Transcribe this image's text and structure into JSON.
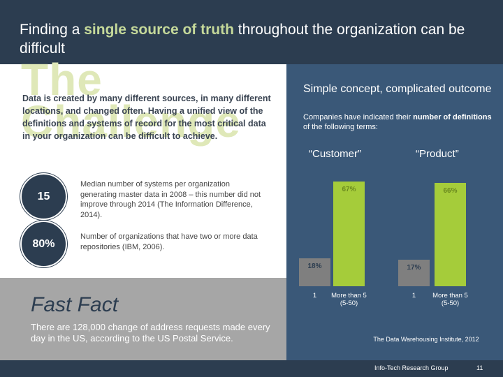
{
  "header": {
    "title_pre": "Finding a ",
    "title_highlight": "single source of truth",
    "title_post": " throughout the organization can be difficult"
  },
  "left": {
    "big_heading_line1": "The",
    "big_heading_line2": "Challenge",
    "intro": "Data is created by many different sources, in many different locations, and changed often. Having a unified view of the definitions and systems of record for the most critical data in your organization can be difficult to achieve.",
    "stats": [
      {
        "value": "15",
        "text": "Median number of systems per organization generating master data in 2008 – this number did not improve through 2014 (The Information Difference, 2014)."
      },
      {
        "value": "80%",
        "text": "Number of organizations that have two or more data repositories (IBM, 2006)."
      }
    ]
  },
  "fast_fact": {
    "heading": "Fast Fact",
    "body": "There are 128,000 change of address requests made every day in the US, according to the US Postal Service."
  },
  "right": {
    "heading": "Simple concept, complicated outcome",
    "sub_pre": "Companies have indicated their ",
    "sub_bold": "number of definitions",
    "sub_post": " of the following terms:",
    "source": "The Data Warehousing Institute, 2012"
  },
  "chart_data": [
    {
      "type": "bar",
      "title": "“Customer”",
      "categories": [
        "1",
        "More than 5 (5-50)"
      ],
      "values": [
        18,
        67
      ],
      "value_labels": [
        "18%",
        "67%"
      ],
      "colors": [
        "#7f7f7f",
        "#a5cc3a"
      ]
    },
    {
      "type": "bar",
      "title": "“Product”",
      "categories": [
        "1",
        "More than 5 (5-50)"
      ],
      "values": [
        17,
        66
      ],
      "value_labels": [
        "17%",
        "66%"
      ],
      "colors": [
        "#7f7f7f",
        "#a5cc3a"
      ]
    }
  ],
  "footer": {
    "org": "Info-Tech Research Group",
    "page": "11"
  }
}
